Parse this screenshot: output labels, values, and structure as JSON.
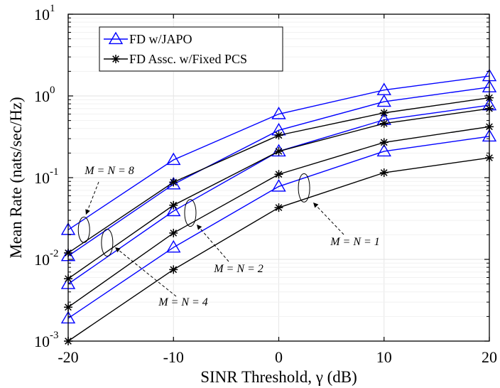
{
  "chart_data": {
    "type": "line",
    "xlabel": "SINR Threshold, γ (dB)",
    "ylabel": "Mean Rate (nats/sec/Hz)",
    "xlim": [
      -20,
      20
    ],
    "ylim": [
      0.001,
      10
    ],
    "yscale": "log",
    "grid": true,
    "legend_position": "top-left",
    "x_ticks": [
      -20,
      -10,
      0,
      10,
      20
    ],
    "x_tick_labels": [
      "-20",
      "-10",
      "0",
      "10",
      "20"
    ],
    "y_ticks": [
      0.001,
      0.01,
      0.1,
      1,
      10
    ],
    "y_tick_labels": [
      {
        "base": "10",
        "exp": "-3"
      },
      {
        "base": "10",
        "exp": "-2"
      },
      {
        "base": "10",
        "exp": "-1"
      },
      {
        "base": "10",
        "exp": "0"
      },
      {
        "base": "10",
        "exp": "1"
      }
    ],
    "x": [
      -20,
      -10,
      0,
      10,
      20
    ],
    "legend": [
      {
        "label": "FD w/JAPO",
        "color": "#0000ff",
        "marker": "triangle"
      },
      {
        "label": "FD Assc. w/Fixed PCS",
        "color": "#000000",
        "marker": "asterisk"
      }
    ],
    "series": [
      {
        "group": "FD w/JAPO",
        "config": "M = N = 8",
        "color": "#0000ff",
        "marker": "triangle",
        "values": [
          0.023,
          0.165,
          0.6,
          1.18,
          1.75
        ]
      },
      {
        "group": "FD w/JAPO",
        "config": "M = N = 4",
        "color": "#0000ff",
        "marker": "triangle",
        "values": [
          0.011,
          0.083,
          0.38,
          0.85,
          1.28
        ]
      },
      {
        "group": "FD w/JAPO",
        "config": "M = N = 2",
        "color": "#0000ff",
        "marker": "triangle",
        "values": [
          0.005,
          0.039,
          0.21,
          0.51,
          0.77
        ]
      },
      {
        "group": "FD w/JAPO",
        "config": "M = N = 1",
        "color": "#0000ff",
        "marker": "triangle",
        "values": [
          0.0019,
          0.014,
          0.078,
          0.21,
          0.32
        ]
      },
      {
        "group": "FD Assc. w/Fixed PCS",
        "config": "M = N = 8",
        "color": "#000000",
        "marker": "asterisk",
        "values": [
          0.012,
          0.088,
          0.33,
          0.62,
          0.95
        ]
      },
      {
        "group": "FD Assc. w/Fixed PCS",
        "config": "M = N = 4",
        "color": "#000000",
        "marker": "asterisk",
        "values": [
          0.0058,
          0.046,
          0.21,
          0.46,
          0.7
        ]
      },
      {
        "group": "FD Assc. w/Fixed PCS",
        "config": "M = N = 2",
        "color": "#000000",
        "marker": "asterisk",
        "values": [
          0.0026,
          0.021,
          0.11,
          0.27,
          0.42
        ]
      },
      {
        "group": "FD Assc. w/Fixed PCS",
        "config": "M = N = 1",
        "color": "#000000",
        "marker": "asterisk",
        "values": [
          0.001,
          0.0075,
          0.043,
          0.115,
          0.175
        ]
      }
    ],
    "annotations": [
      {
        "text": "M = N = 8",
        "x": -18.5,
        "y": 0.023
      },
      {
        "text": "M = N = 4",
        "x": -16.3,
        "y": 0.016
      },
      {
        "text": "M = N = 2",
        "x": -8.4,
        "y": 0.037
      },
      {
        "text": "M = N = 1",
        "x": 2.4,
        "y": 0.075
      }
    ]
  }
}
